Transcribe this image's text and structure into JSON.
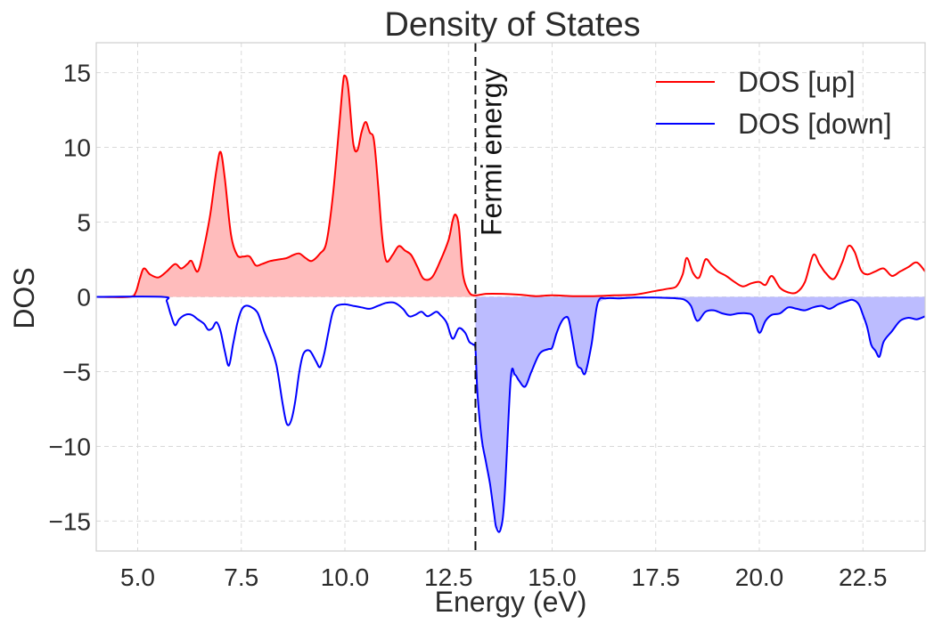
{
  "chart_data": {
    "type": "area",
    "title": "Density of States",
    "xlabel": "Energy (eV)",
    "ylabel": "DOS",
    "xlim": [
      4.0,
      24.0
    ],
    "ylim": [
      -17.0,
      17.0
    ],
    "x_ticks": [
      5.0,
      7.5,
      10.0,
      12.5,
      15.0,
      17.5,
      20.0,
      22.5
    ],
    "x_tick_labels": [
      "5.0",
      "7.5",
      "10.0",
      "12.5",
      "15.0",
      "17.5",
      "20.0",
      "22.5"
    ],
    "y_ticks": [
      15,
      10,
      5,
      0,
      -5,
      -10,
      -15
    ],
    "y_tick_labels": [
      "15",
      "10",
      "5",
      "0",
      "−5",
      "−10",
      "−15"
    ],
    "grid": true,
    "legend_position": "top-right",
    "fermi_energy": 13.15,
    "annotation": "Fermi energy",
    "series": [
      {
        "name": "DOS [up]",
        "color": "#ff0000",
        "fill_color": "#ffbcbc",
        "fill_region": "below-fermi",
        "x": [
          4.0,
          4.8,
          4.95,
          5.05,
          5.15,
          5.3,
          5.5,
          5.7,
          5.9,
          6.05,
          6.2,
          6.3,
          6.45,
          6.6,
          6.75,
          6.9,
          7.0,
          7.1,
          7.25,
          7.4,
          7.55,
          7.7,
          7.85,
          8.0,
          8.2,
          8.4,
          8.6,
          8.75,
          8.9,
          9.05,
          9.2,
          9.4,
          9.55,
          9.7,
          9.85,
          9.95,
          10.0,
          10.08,
          10.2,
          10.3,
          10.4,
          10.5,
          10.6,
          10.7,
          10.8,
          10.9,
          11.0,
          11.15,
          11.3,
          11.45,
          11.6,
          11.75,
          11.9,
          12.1,
          12.3,
          12.5,
          12.6,
          12.67,
          12.75,
          12.85,
          13.0,
          13.15,
          13.4,
          13.8,
          14.2,
          14.6,
          15.0,
          15.5,
          16.0,
          16.5,
          17.0,
          17.5,
          17.8,
          18.0,
          18.15,
          18.25,
          18.4,
          18.55,
          18.7,
          18.85,
          19.0,
          19.2,
          19.4,
          19.6,
          19.8,
          20.0,
          20.15,
          20.3,
          20.5,
          20.7,
          20.9,
          21.1,
          21.3,
          21.45,
          21.6,
          21.8,
          22.0,
          22.15,
          22.3,
          22.45,
          22.6,
          22.8,
          23.0,
          23.2,
          23.4,
          23.6,
          23.8,
          24.0
        ],
        "y": [
          0.0,
          0.0,
          0.3,
          1.2,
          1.9,
          1.5,
          1.3,
          1.7,
          2.2,
          1.9,
          2.2,
          2.4,
          1.7,
          3.3,
          5.5,
          8.5,
          9.7,
          8.0,
          4.2,
          2.8,
          2.7,
          2.7,
          2.1,
          2.2,
          2.4,
          2.5,
          2.6,
          2.8,
          2.9,
          2.6,
          2.4,
          2.9,
          3.6,
          6.5,
          11.0,
          14.2,
          14.8,
          14.0,
          10.3,
          9.8,
          11.0,
          11.7,
          11.0,
          10.5,
          7.5,
          4.0,
          2.4,
          2.8,
          3.4,
          3.1,
          2.8,
          2.0,
          1.2,
          1.3,
          2.4,
          3.8,
          5.1,
          5.5,
          4.7,
          1.5,
          0.3,
          0.1,
          0.2,
          0.2,
          0.15,
          0.05,
          0.1,
          0.05,
          0.05,
          0.1,
          0.15,
          0.4,
          0.55,
          0.7,
          1.5,
          2.6,
          1.6,
          1.3,
          2.5,
          2.1,
          1.7,
          1.4,
          1.0,
          0.7,
          0.9,
          1.0,
          0.8,
          1.4,
          0.6,
          0.3,
          0.3,
          1.0,
          2.8,
          2.2,
          1.6,
          1.2,
          2.3,
          3.4,
          3.0,
          1.8,
          1.5,
          1.7,
          1.9,
          1.4,
          1.7,
          2.0,
          2.3,
          1.7
        ]
      },
      {
        "name": "DOS [down]",
        "color": "#0000ff",
        "fill_color": "#bcbcff",
        "fill_region": "above-fermi",
        "x": [
          4.0,
          5.6,
          5.7,
          5.8,
          5.9,
          6.0,
          6.15,
          6.3,
          6.45,
          6.6,
          6.7,
          6.8,
          6.9,
          7.0,
          7.1,
          7.2,
          7.3,
          7.4,
          7.5,
          7.6,
          7.75,
          7.9,
          8.05,
          8.2,
          8.35,
          8.5,
          8.6,
          8.7,
          8.8,
          8.9,
          9.0,
          9.15,
          9.3,
          9.4,
          9.5,
          9.6,
          9.7,
          9.8,
          10.0,
          10.2,
          10.4,
          10.6,
          10.8,
          11.0,
          11.2,
          11.4,
          11.55,
          11.7,
          11.85,
          12.0,
          12.2,
          12.3,
          12.45,
          12.6,
          12.75,
          12.9,
          13.0,
          13.1,
          13.15,
          13.2,
          13.3,
          13.4,
          13.5,
          13.6,
          13.65,
          13.75,
          13.85,
          14.0,
          14.1,
          14.2,
          14.35,
          14.5,
          14.7,
          14.9,
          15.0,
          15.1,
          15.2,
          15.3,
          15.4,
          15.5,
          15.6,
          15.7,
          15.8,
          15.95,
          16.1,
          16.3,
          16.6,
          17.0,
          17.5,
          18.0,
          18.2,
          18.35,
          18.5,
          18.7,
          18.9,
          19.1,
          19.3,
          19.5,
          19.7,
          19.85,
          20.0,
          20.15,
          20.3,
          20.5,
          20.7,
          20.9,
          21.1,
          21.3,
          21.5,
          21.7,
          21.9,
          22.1,
          22.25,
          22.4,
          22.5,
          22.6,
          22.7,
          22.8,
          22.9,
          23.0,
          23.2,
          23.4,
          23.6,
          23.8,
          24.0
        ],
        "y": [
          0.0,
          0.0,
          -0.3,
          -1.2,
          -1.9,
          -1.5,
          -1.2,
          -1.2,
          -1.5,
          -1.8,
          -2.2,
          -2.1,
          -1.7,
          -2.3,
          -3.6,
          -4.6,
          -3.2,
          -1.8,
          -0.9,
          -0.6,
          -0.7,
          -1.1,
          -2.3,
          -3.3,
          -4.6,
          -7.2,
          -8.5,
          -8.3,
          -7.0,
          -5.0,
          -3.8,
          -3.6,
          -4.3,
          -4.7,
          -3.8,
          -2.4,
          -1.1,
          -0.6,
          -0.5,
          -0.6,
          -0.7,
          -0.8,
          -0.6,
          -0.4,
          -0.4,
          -0.8,
          -1.3,
          -1.2,
          -1.0,
          -1.3,
          -1.0,
          -1.2,
          -1.7,
          -2.8,
          -2.1,
          -2.4,
          -3.0,
          -3.2,
          -3.5,
          -6.5,
          -9.5,
          -11.0,
          -12.5,
          -14.5,
          -15.4,
          -15.6,
          -13.5,
          -5.5,
          -5.2,
          -5.6,
          -6.0,
          -5.0,
          -3.8,
          -3.5,
          -3.4,
          -2.5,
          -1.8,
          -1.4,
          -1.5,
          -3.0,
          -4.5,
          -4.8,
          -5.1,
          -3.2,
          -0.4,
          -0.1,
          -0.1,
          -0.05,
          -0.05,
          -0.1,
          -0.2,
          -0.6,
          -1.6,
          -1.0,
          -0.9,
          -1.1,
          -1.2,
          -1.1,
          -1.1,
          -1.3,
          -2.4,
          -1.6,
          -1.2,
          -1.1,
          -0.7,
          -0.8,
          -0.9,
          -0.7,
          -0.6,
          -0.8,
          -0.5,
          -0.3,
          -0.2,
          -0.5,
          -1.2,
          -2.0,
          -3.2,
          -3.6,
          -4.0,
          -3.0,
          -2.3,
          -1.6,
          -1.4,
          -1.5,
          -1.3
        ]
      }
    ]
  }
}
